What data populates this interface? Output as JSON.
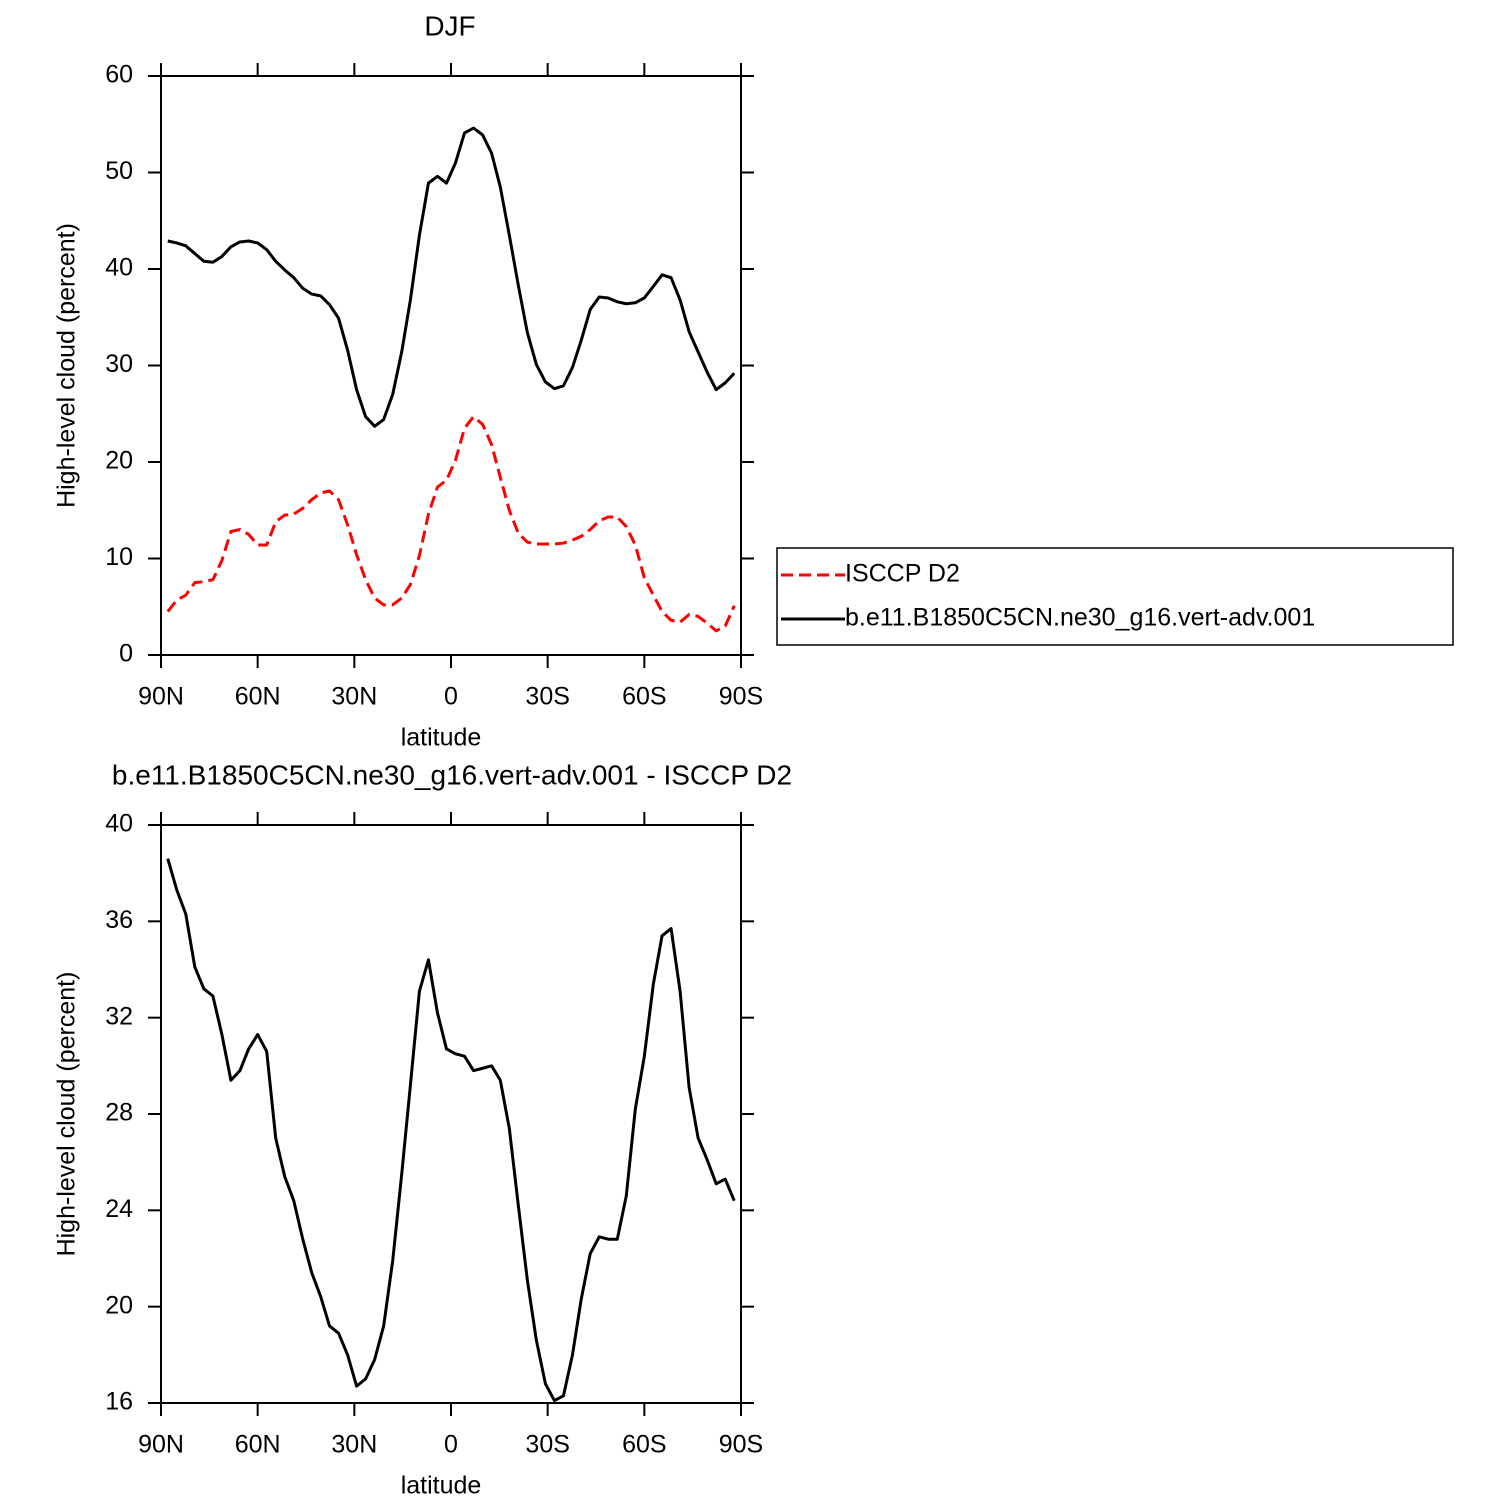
{
  "chart_data": [
    {
      "type": "line",
      "title": "DJF",
      "x_label": "latitude",
      "y_label": "High-level cloud (percent)",
      "x": [
        87.9,
        85.1,
        82.3,
        79.5,
        76.7,
        73.9,
        71.1,
        68.3,
        65.5,
        62.8,
        60.0,
        57.2,
        54.4,
        51.6,
        48.8,
        46.0,
        43.2,
        40.4,
        37.7,
        34.9,
        32.1,
        29.3,
        26.5,
        23.7,
        20.9,
        18.1,
        15.3,
        12.6,
        9.8,
        7.0,
        4.2,
        1.4,
        -1.4,
        -4.2,
        -7.0,
        -9.8,
        -12.6,
        -15.3,
        -18.1,
        -20.9,
        -23.7,
        -26.5,
        -29.3,
        -32.1,
        -34.9,
        -37.7,
        -40.4,
        -43.2,
        -46.0,
        -48.8,
        -51.6,
        -54.4,
        -57.2,
        -60.0,
        -62.8,
        -65.5,
        -68.3,
        -71.1,
        -73.9,
        -76.7,
        -79.5,
        -82.3,
        -85.1,
        -87.9
      ],
      "xlim": [
        90,
        -90
      ],
      "xticks": [
        {
          "value": 90,
          "label": "90N"
        },
        {
          "value": 60,
          "label": "60N"
        },
        {
          "value": 30,
          "label": "30N"
        },
        0,
        {
          "value": -30,
          "label": "30S"
        },
        {
          "value": -60,
          "label": "60S"
        },
        {
          "value": -90,
          "label": "90S"
        }
      ],
      "ylim": [
        0,
        60
      ],
      "yticks": [
        0,
        10,
        20,
        30,
        40,
        50,
        60
      ],
      "series": [
        {
          "name": "ISCCP D2",
          "color": "#ff0000",
          "dashed": true,
          "values": [
            4.5,
            5.7,
            6.2,
            7.5,
            7.6,
            7.8,
            9.8,
            12.8,
            13.0,
            12.5,
            11.4,
            11.4,
            13.8,
            14.5,
            14.6,
            15.2,
            16.1,
            16.8,
            17.0,
            16.1,
            13.5,
            10.4,
            7.8,
            5.9,
            5.2,
            5.2,
            5.9,
            7.3,
            10.3,
            14.6,
            17.4,
            18.1,
            20.2,
            23.5,
            24.7,
            23.9,
            21.8,
            18.4,
            15.0,
            12.6,
            11.7,
            11.5,
            11.5,
            11.5,
            11.6,
            11.9,
            12.3,
            13.0,
            13.9,
            14.3,
            14.3,
            13.3,
            11.4,
            8.0,
            6.2,
            4.5,
            3.6,
            3.4,
            4.2,
            4.0,
            3.3,
            2.5,
            3.0,
            5.1
          ]
        },
        {
          "name": "b.e11.B1850C5CN.ne30_g16.vert-adv.001",
          "color": "#000000",
          "dashed": false,
          "values": [
            42.9,
            42.7,
            42.4,
            41.6,
            40.8,
            40.7,
            41.3,
            42.3,
            42.8,
            42.9,
            42.7,
            42.0,
            40.8,
            39.9,
            39.1,
            38.0,
            37.4,
            37.2,
            36.3,
            34.9,
            31.6,
            27.5,
            24.7,
            23.7,
            24.4,
            27.0,
            31.4,
            36.8,
            43.5,
            48.9,
            49.6,
            48.9,
            51.0,
            54.1,
            54.6,
            53.9,
            52.0,
            48.5,
            43.5,
            38.3,
            33.4,
            30.1,
            28.3,
            27.6,
            27.9,
            29.8,
            32.6,
            35.8,
            37.1,
            37.0,
            36.6,
            36.4,
            36.5,
            37.0,
            38.2,
            39.4,
            39.1,
            36.8,
            33.5,
            31.4,
            29.3,
            27.5,
            28.2,
            29.2
          ]
        }
      ]
    },
    {
      "type": "line",
      "title": "b.e11.B1850C5CN.ne30_g16.vert-adv.001 - ISCCP D2",
      "x_label": "latitude",
      "y_label": "High-level cloud (percent)",
      "x": [
        87.9,
        85.1,
        82.3,
        79.5,
        76.7,
        73.9,
        71.1,
        68.3,
        65.5,
        62.8,
        60.0,
        57.2,
        54.4,
        51.6,
        48.8,
        46.0,
        43.2,
        40.4,
        37.7,
        34.9,
        32.1,
        29.3,
        26.5,
        23.7,
        20.9,
        18.1,
        15.3,
        12.6,
        9.8,
        7.0,
        4.2,
        1.4,
        -1.4,
        -4.2,
        -7.0,
        -9.8,
        -12.6,
        -15.3,
        -18.1,
        -20.9,
        -23.7,
        -26.5,
        -29.3,
        -32.1,
        -34.9,
        -37.7,
        -40.4,
        -43.2,
        -46.0,
        -48.8,
        -51.6,
        -54.4,
        -57.2,
        -60.0,
        -62.8,
        -65.5,
        -68.3,
        -71.1,
        -73.9,
        -76.7,
        -79.5,
        -82.3,
        -85.1,
        -87.9
      ],
      "xlim": [
        90,
        -90
      ],
      "xticks": [
        {
          "value": 90,
          "label": "90N"
        },
        {
          "value": 60,
          "label": "60N"
        },
        {
          "value": 30,
          "label": "30N"
        },
        0,
        {
          "value": -30,
          "label": "30S"
        },
        {
          "value": -60,
          "label": "60S"
        },
        {
          "value": -90,
          "label": "90S"
        }
      ],
      "ylim": [
        16,
        40
      ],
      "yticks": [
        16,
        20,
        24,
        28,
        32,
        36,
        40
      ],
      "series": [
        {
          "color": "#000000",
          "dashed": false,
          "values": [
            38.6,
            37.3,
            36.3,
            34.1,
            33.2,
            32.9,
            31.3,
            29.4,
            29.8,
            30.7,
            31.3,
            30.6,
            27.0,
            25.4,
            24.4,
            22.8,
            21.4,
            20.4,
            19.2,
            18.9,
            18.0,
            16.7,
            17.0,
            17.8,
            19.2,
            21.9,
            25.5,
            29.2,
            33.1,
            34.4,
            32.2,
            30.7,
            30.5,
            30.4,
            29.8,
            29.9,
            30.0,
            29.4,
            27.4,
            24.2,
            21.1,
            18.6,
            16.8,
            16.1,
            16.3,
            18.0,
            20.3,
            22.2,
            22.9,
            22.8,
            22.8,
            24.6,
            28.2,
            30.4,
            33.4,
            35.4,
            35.7,
            33.1,
            29.1,
            27.0,
            26.1,
            25.1,
            25.3,
            24.4
          ]
        }
      ]
    }
  ]
}
